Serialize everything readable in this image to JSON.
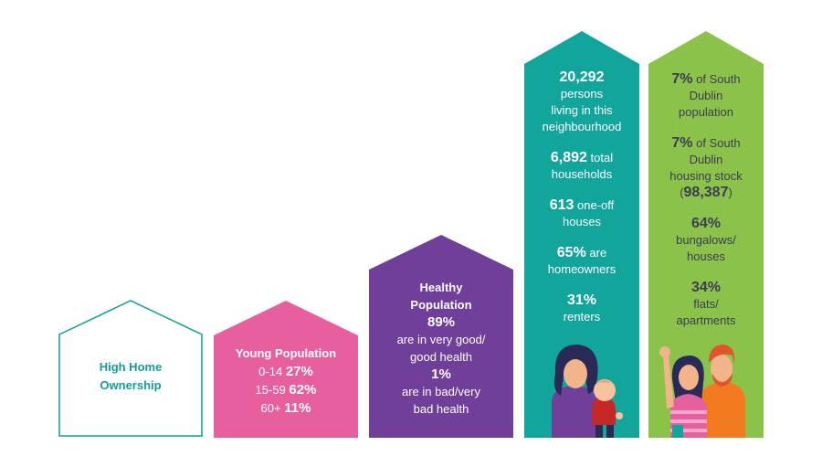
{
  "colors": {
    "teal_outline": "#0f9e96",
    "pink": "#e85fa0",
    "purple": "#6f3f9a",
    "teal": "#12a59c",
    "green": "#8bc34a",
    "text_dark": "#3b3d55"
  },
  "ownership": {
    "line1": "High Home",
    "line2": "Ownership"
  },
  "young": {
    "title": "Young Population",
    "rows": [
      {
        "label": "0-14",
        "value": "27%"
      },
      {
        "label": "15-59",
        "value": "62%"
      },
      {
        "label": "60+",
        "value": "11%"
      }
    ]
  },
  "healthy": {
    "title1": "Healthy",
    "title2": "Population",
    "good_pct": "89%",
    "good_text1": "are in very good/",
    "good_text2": "good health",
    "bad_pct": "1%",
    "bad_text1": "are in bad/very",
    "bad_text2": "bad health"
  },
  "neighbourhood": {
    "persons": "20,292",
    "persons_text1": "persons",
    "persons_text2": "living in this",
    "persons_text3": "neighbourhood",
    "households": "6,892",
    "households_text1": "total",
    "households_text2": "households",
    "oneoff": "613",
    "oneoff_text1": "one-off",
    "oneoff_text2": "houses",
    "homeowners": "65%",
    "homeowners_text1": "are",
    "homeowners_text2": "homeowners",
    "renters": "31%",
    "renters_text": "renters"
  },
  "south_dublin": {
    "pop_pct": "7%",
    "pop_text1": "of South",
    "pop_text2": "Dublin",
    "pop_text3": "population",
    "stock_pct": "7%",
    "stock_text1": "of South",
    "stock_text2": "Dublin",
    "stock_text3": "housing stock",
    "stock_count": "98,387",
    "bungalows_pct": "64%",
    "bungalows_text1": "bungalows/",
    "bungalows_text2": "houses",
    "flats_pct": "34%",
    "flats_text1": "flats/",
    "flats_text2": "apartments"
  },
  "icons": {
    "mother_child": "mother-child-illustration",
    "couple": "couple-illustration"
  }
}
